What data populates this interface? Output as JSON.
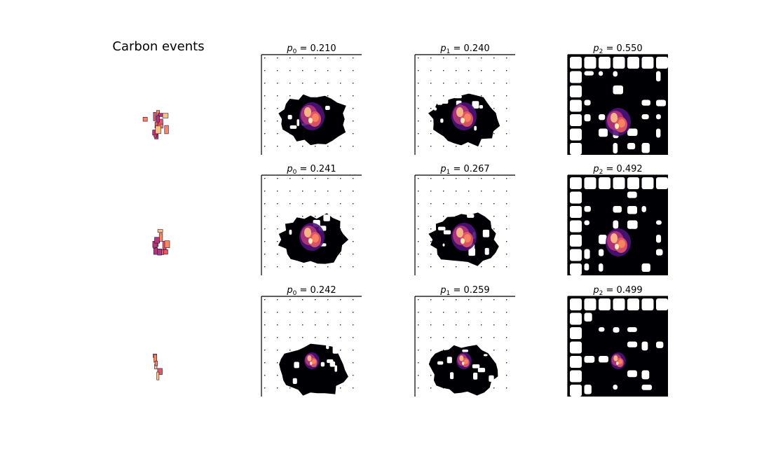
{
  "figure": {
    "row_title": "Carbon events"
  },
  "colors": {
    "background": "#ffffff",
    "hit_map_dark": "#000004",
    "colormap": [
      "#000004",
      "#1c1044",
      "#4f127b",
      "#812581",
      "#b5367a",
      "#e55964",
      "#fb8761",
      "#fec287",
      "#fcfdbf"
    ]
  },
  "chart_data": {
    "type": "heatmap",
    "description_of_grid": "3 rows x 4 columns of image panels; column 0 shows the event, columns 1-3 show class scores",
    "rows": [
      {
        "event_image": "carbon-event-1",
        "scores": [
          {
            "label_symbol": "p",
            "label_sub": "0",
            "value": "0.210"
          },
          {
            "label_symbol": "p",
            "label_sub": "1",
            "value": "0.240"
          },
          {
            "label_symbol": "p",
            "label_sub": "2",
            "value": "0.550"
          }
        ]
      },
      {
        "event_image": "carbon-event-2",
        "scores": [
          {
            "label_symbol": "p",
            "label_sub": "0",
            "value": "0.241"
          },
          {
            "label_symbol": "p",
            "label_sub": "1",
            "value": "0.267"
          },
          {
            "label_symbol": "p",
            "label_sub": "2",
            "value": "0.492"
          }
        ]
      },
      {
        "event_image": "carbon-event-3",
        "scores": [
          {
            "label_symbol": "p",
            "label_sub": "0",
            "value": "0.242"
          },
          {
            "label_symbol": "p",
            "label_sub": "1",
            "value": "0.259"
          },
          {
            "label_symbol": "p",
            "label_sub": "2",
            "value": "0.499"
          }
        ]
      }
    ]
  }
}
